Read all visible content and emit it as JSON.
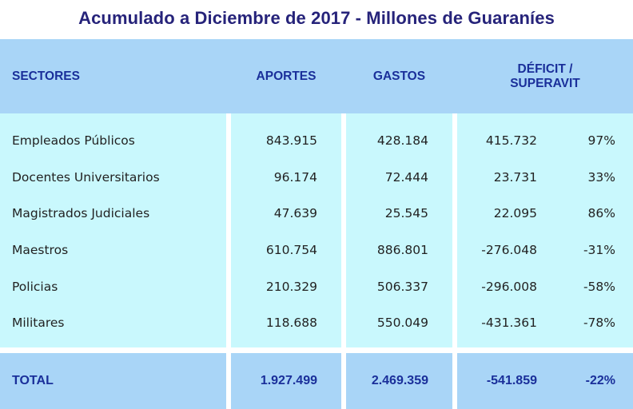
{
  "title": "Acumulado a Diciembre de 2017 - Millones de Guaraníes",
  "columns": {
    "sectores": "SECTORES",
    "aportes": "APORTES",
    "gastos": "GASTOS",
    "deficit_line1": "DÉFICIT /",
    "deficit_line2": "SUPERAVIT"
  },
  "rows": [
    {
      "sector": "Empleados Públicos",
      "aportes": "843.915",
      "gastos": "428.184",
      "deficit": "415.732",
      "pct": "97%"
    },
    {
      "sector": "Docentes Universitarios",
      "aportes": "96.174",
      "gastos": "72.444",
      "deficit": "23.731",
      "pct": "33%"
    },
    {
      "sector": "Magistrados Judiciales",
      "aportes": "47.639",
      "gastos": "25.545",
      "deficit": "22.095",
      "pct": "86%"
    },
    {
      "sector": "Maestros",
      "aportes": "610.754",
      "gastos": "886.801",
      "deficit": "-276.048",
      "pct": "-31%"
    },
    {
      "sector": "Policias",
      "aportes": "210.329",
      "gastos": "506.337",
      "deficit": "-296.008",
      "pct": "-58%"
    },
    {
      "sector": "Militares",
      "aportes": "118.688",
      "gastos": "550.049",
      "deficit": "-431.361",
      "pct": "-78%"
    }
  ],
  "total": {
    "label": "TOTAL",
    "aportes": "1.927.499",
    "gastos": "2.469.359",
    "deficit": "-541.859",
    "pct": "-22%"
  },
  "colors": {
    "title": "#26237a",
    "header_bg": "#a9d5f7",
    "header_text": "#1a2f9a",
    "body_bg": "#c9f8fd",
    "body_text": "#222222"
  }
}
